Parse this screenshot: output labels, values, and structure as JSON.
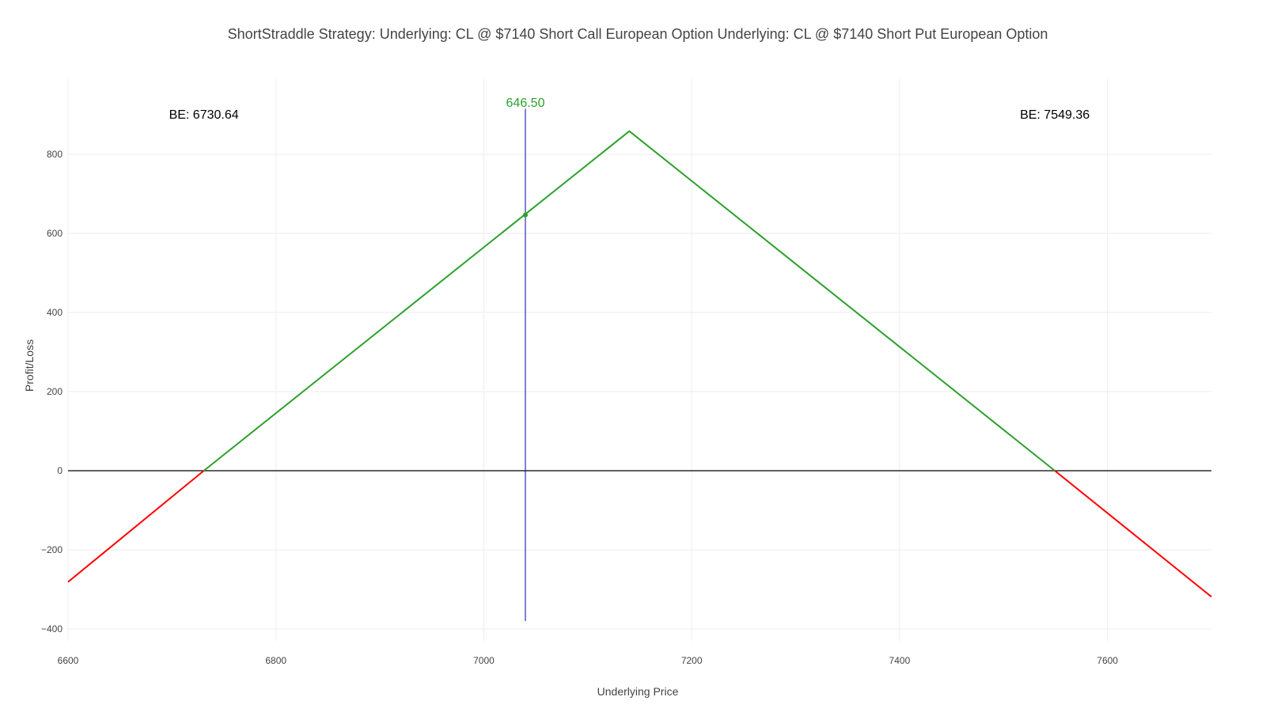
{
  "chart_data": {
    "type": "line",
    "title": "ShortStraddle Strategy:   Underlying: CL @ $7140 Short Call European Option  Underlying: CL @ $7140 Short Put European Option",
    "xlabel": "Underlying Price",
    "ylabel": "Profit/Loss",
    "xlim": [
      6600,
      7700
    ],
    "ylim": [
      -430,
      990
    ],
    "xticks": [
      6600,
      6800,
      7000,
      7200,
      7400,
      7600
    ],
    "yticks": [
      -400,
      -200,
      0,
      200,
      400,
      600,
      800
    ],
    "ytick_labels": [
      "−400",
      "−200",
      "0",
      "200",
      "400",
      "600",
      "800"
    ],
    "grid": true,
    "zero_line": 0,
    "series": [
      {
        "color": "#ff0000",
        "x": [
          6600,
          6730.64
        ],
        "y": [
          -281.28,
          0
        ]
      },
      {
        "color": "#2ca02c",
        "x": [
          6730.64,
          7140,
          7549.36
        ],
        "y": [
          0,
          858.36,
          0
        ]
      },
      {
        "color": "#ff0000",
        "x": [
          7549.36,
          7700
        ],
        "y": [
          0,
          -318.66
        ]
      }
    ],
    "current_price_line": {
      "x": 7040,
      "y_range": [
        -380,
        915
      ],
      "color": "#0000aa"
    },
    "current_point": {
      "x": 7040,
      "y": 646.5,
      "color": "#2ca02c"
    },
    "annotations": [
      {
        "text": "BE: 6730.64",
        "x": 6730.64,
        "y": 890,
        "color": "#000000"
      },
      {
        "text": "646.50",
        "x": 7040,
        "y": 920,
        "color": "#2ca02c"
      },
      {
        "text": "BE: 7549.36",
        "x": 7549.36,
        "y": 890,
        "color": "#000000"
      }
    ]
  }
}
